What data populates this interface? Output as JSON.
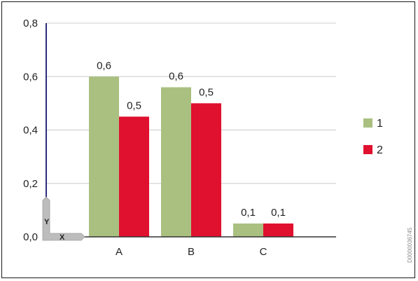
{
  "chart_data": {
    "type": "bar",
    "categories": [
      "A",
      "B",
      "C"
    ],
    "series": [
      {
        "name": "1",
        "color": "#a9c080",
        "values": [
          0.6,
          0.56,
          0.05
        ],
        "labels": [
          "0,6",
          "0,6",
          "0,1"
        ]
      },
      {
        "name": "2",
        "color": "#e0102f",
        "values": [
          0.45,
          0.5,
          0.05
        ],
        "labels": [
          "0,5",
          "0,5",
          "0,1"
        ]
      }
    ],
    "ylim": [
      0,
      0.8
    ],
    "yticks": [
      0,
      0.2,
      0.4,
      0.6,
      0.8
    ],
    "ytick_labels": [
      "0,0",
      "0,2",
      "0,4",
      "0,6",
      "0,8"
    ],
    "grid": true,
    "legend_position": "right",
    "axis_corner_labels": {
      "y": "Y",
      "x": "X"
    },
    "document_id": "D0000036745"
  },
  "colors": {
    "grid": "#cccccc",
    "y_axis": "#2a2f7a",
    "x_axis": "#333333",
    "corner": "#bdbdbd"
  }
}
